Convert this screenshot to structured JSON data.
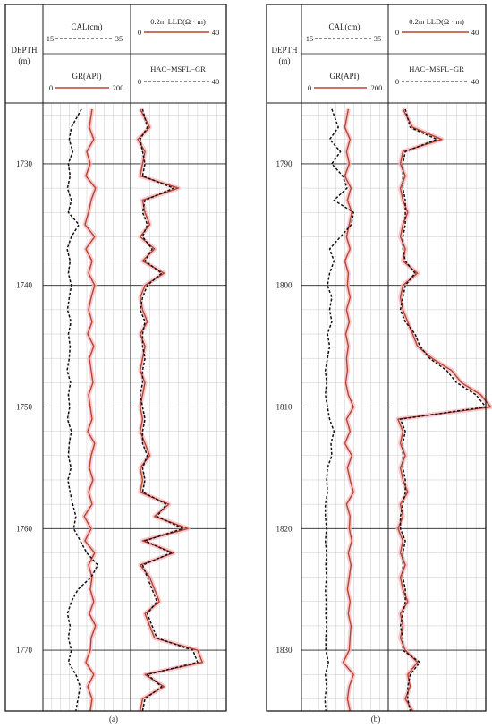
{
  "colors": {
    "gr_line": "#b5462a",
    "gr_halo": "#f4b9c6",
    "dashed": "#111111",
    "frame": "#1a1a1a",
    "minor_grid": "#c8c8c8",
    "major_grid": "#222222"
  },
  "chart_data": [
    {
      "type": "line",
      "panel": "(a)",
      "depth_header": [
        "DEPTH",
        "(m)"
      ],
      "depth_range": [
        1725,
        1775
      ],
      "depth_ticks": [
        1730,
        1740,
        1750,
        1760,
        1770
      ],
      "track1": {
        "curves": [
          {
            "name": "CAL(cm)",
            "min": 15,
            "max": 35,
            "style": "dashed"
          },
          {
            "name": "GR(API)",
            "min": 0,
            "max": 200,
            "style": "solid"
          }
        ]
      },
      "track2": {
        "curves": [
          {
            "name": "0.2m LLD(Ω · m)",
            "min": 0,
            "max": 40,
            "style": "solid"
          },
          {
            "name": "HAC−MSFL−GR",
            "min": 0,
            "max": 40,
            "style": "dashed"
          }
        ]
      },
      "series": [
        {
          "name": "GR(API)",
          "track": 1,
          "scale": [
            0,
            200
          ],
          "x": [
            1725.5,
            1727,
            1728,
            1729,
            1730,
            1731,
            1732,
            1733,
            1734,
            1735,
            1736,
            1737,
            1738,
            1739,
            1740,
            1741,
            1742,
            1743,
            1744,
            1745,
            1746,
            1747,
            1748,
            1749,
            1750,
            1751,
            1752,
            1753,
            1754,
            1755,
            1756,
            1757,
            1758,
            1759,
            1760,
            1761,
            1762,
            1763,
            1764,
            1765,
            1766,
            1767,
            1768,
            1769,
            1770,
            1771,
            1772,
            1773,
            1774,
            1775
          ],
          "values": [
            112,
            106,
            116,
            100,
            108,
            98,
            120,
            110,
            104,
            96,
            118,
            98,
            112,
            104,
            118,
            110,
            104,
            112,
            102,
            116,
            106,
            110,
            114,
            104,
            108,
            112,
            102,
            118,
            110,
            106,
            114,
            104,
            112,
            94,
            110,
            96,
            118,
            104,
            112,
            108,
            116,
            106,
            120,
            110,
            108,
            98,
            116,
            102,
            112,
            108
          ]
        },
        {
          "name": "CAL(cm)",
          "track": 1,
          "scale": [
            15,
            35
          ],
          "x": [
            1725.5,
            1727,
            1728,
            1729,
            1730,
            1731,
            1732,
            1733,
            1734,
            1735,
            1736,
            1737,
            1738,
            1739,
            1740,
            1741,
            1742,
            1743,
            1744,
            1745,
            1746,
            1747,
            1748,
            1749,
            1750,
            1751,
            1752,
            1753,
            1754,
            1755,
            1756,
            1757,
            1758,
            1759,
            1760,
            1761,
            1762,
            1763,
            1764,
            1765,
            1766,
            1767,
            1768,
            1769,
            1770,
            1771,
            1772,
            1773,
            1774,
            1775
          ],
          "values": [
            23.8,
            21.5,
            21.0,
            21.8,
            20.8,
            21.2,
            20.6,
            21.5,
            20.8,
            23.2,
            21.5,
            20.5,
            21.2,
            20.8,
            21.5,
            21.0,
            20.6,
            21.4,
            20.8,
            21.2,
            21.0,
            20.5,
            21.3,
            20.8,
            21.1,
            20.6,
            21.5,
            21.0,
            20.8,
            21.4,
            20.7,
            21.2,
            21.8,
            22.5,
            22.0,
            23.5,
            25.0,
            27.5,
            26.0,
            23.0,
            21.5,
            20.6,
            21.2,
            20.8,
            21.5,
            20.8,
            22.5,
            23.5,
            23.0,
            22.5
          ]
        },
        {
          "name": "0.2m LLD(Ω · m)",
          "track": 2,
          "scale": [
            0,
            40
          ],
          "x": [
            1725.5,
            1727,
            1728,
            1729,
            1730,
            1731,
            1732,
            1733,
            1734,
            1735,
            1736,
            1737,
            1738,
            1739,
            1740,
            1741,
            1742,
            1743,
            1744,
            1745,
            1746,
            1747,
            1748,
            1749,
            1750,
            1751,
            1752,
            1753,
            1754,
            1755,
            1756,
            1757,
            1758,
            1759,
            1760,
            1761,
            1762,
            1763,
            1764,
            1765,
            1766,
            1767,
            1768,
            1769,
            1770,
            1771,
            1772,
            1773,
            1774,
            1775
          ],
          "values": [
            4,
            8,
            3,
            6,
            5,
            4,
            20,
            5,
            6,
            8,
            4,
            10,
            5,
            14,
            6,
            4,
            5,
            7,
            4,
            6,
            5,
            4,
            6,
            5,
            4,
            5,
            4,
            6,
            8,
            4,
            5,
            4,
            16,
            10,
            24,
            5,
            18,
            4,
            8,
            10,
            12,
            6,
            8,
            10,
            28,
            30,
            6,
            14,
            5,
            4
          ]
        },
        {
          "name": "HAC−MSFL−GR",
          "track": 2,
          "scale": [
            0,
            40
          ],
          "x": [
            1725.5,
            1727,
            1728,
            1729,
            1730,
            1731,
            1732,
            1733,
            1734,
            1735,
            1736,
            1737,
            1738,
            1739,
            1740,
            1741,
            1742,
            1743,
            1744,
            1745,
            1746,
            1747,
            1748,
            1749,
            1750,
            1751,
            1752,
            1753,
            1754,
            1755,
            1756,
            1757,
            1758,
            1759,
            1760,
            1761,
            1762,
            1763,
            1764,
            1765,
            1766,
            1767,
            1768,
            1769,
            1770,
            1771,
            1772,
            1773,
            1774,
            1775
          ],
          "values": [
            5,
            7,
            4,
            5,
            6,
            5,
            18,
            6,
            5,
            7,
            5,
            9,
            6,
            13,
            7,
            5,
            4,
            6,
            5,
            5,
            6,
            5,
            5,
            4,
            5,
            6,
            5,
            5,
            7,
            5,
            6,
            5,
            15,
            11,
            22,
            6,
            17,
            5,
            7,
            9,
            11,
            7,
            9,
            11,
            26,
            28,
            7,
            13,
            6,
            5
          ]
        }
      ]
    },
    {
      "type": "line",
      "panel": "(b)",
      "depth_header": [
        "DEPTH",
        "(m)"
      ],
      "depth_range": [
        1785,
        1835
      ],
      "depth_ticks": [
        1790,
        1800,
        1810,
        1820,
        1830
      ],
      "track1": {
        "curves": [
          {
            "name": "CAL(cm)",
            "min": 15,
            "max": 35,
            "style": "dashed"
          },
          {
            "name": "GR(API)",
            "min": 0,
            "max": 200,
            "style": "solid"
          }
        ]
      },
      "track2": {
        "curves": [
          {
            "name": "0.2m LLD(Ω · m)",
            "min": 0,
            "max": 40,
            "style": "solid"
          },
          {
            "name": "HAC−MSFL−GR",
            "min": 0,
            "max": 40,
            "style": "dashed"
          }
        ]
      },
      "series": [
        {
          "name": "GR(API)",
          "track": 1,
          "scale": [
            0,
            200
          ],
          "x": [
            1785.5,
            1787,
            1788,
            1789,
            1790,
            1791,
            1792,
            1793,
            1794,
            1795,
            1796,
            1797,
            1798,
            1799,
            1800,
            1801,
            1802,
            1803,
            1804,
            1805,
            1806,
            1807,
            1808,
            1809,
            1810,
            1811,
            1812,
            1813,
            1814,
            1815,
            1816,
            1817,
            1818,
            1819,
            1820,
            1821,
            1822,
            1823,
            1824,
            1825,
            1826,
            1827,
            1828,
            1829,
            1830,
            1831,
            1832,
            1833,
            1834,
            1835
          ],
          "values": [
            108,
            100,
            112,
            104,
            110,
            100,
            114,
            106,
            116,
            110,
            104,
            112,
            100,
            108,
            106,
            112,
            104,
            110,
            102,
            108,
            104,
            106,
            102,
            108,
            120,
            104,
            112,
            100,
            116,
            106,
            112,
            120,
            104,
            112,
            110,
            116,
            108,
            114,
            110,
            106,
            112,
            108,
            114,
            112,
            110,
            96,
            120,
            110,
            106,
            112
          ]
        },
        {
          "name": "CAL(cm)",
          "track": 1,
          "scale": [
            15,
            35
          ],
          "x": [
            1785.5,
            1787,
            1788,
            1789,
            1790,
            1791,
            1792,
            1793,
            1794,
            1795,
            1796,
            1797,
            1798,
            1799,
            1800,
            1801,
            1802,
            1803,
            1804,
            1805,
            1806,
            1807,
            1808,
            1809,
            1810,
            1811,
            1812,
            1813,
            1814,
            1815,
            1816,
            1817,
            1818,
            1819,
            1820,
            1821,
            1822,
            1823,
            1824,
            1825,
            1826,
            1827,
            1828,
            1829,
            1830,
            1831,
            1832,
            1833,
            1834,
            1835
          ],
          "values": [
            22.0,
            23.5,
            21.5,
            24.0,
            22.0,
            24.5,
            25.5,
            22.5,
            27.0,
            26.5,
            24.0,
            21.5,
            22.5,
            21.5,
            21.0,
            22.0,
            21.5,
            22.0,
            21.0,
            21.5,
            21.0,
            20.5,
            20.8,
            20.5,
            21.0,
            21.5,
            22.5,
            21.8,
            22.0,
            21.0,
            20.8,
            21.0,
            20.5,
            20.5,
            20.8,
            20.5,
            20.8,
            20.6,
            20.8,
            20.5,
            20.7,
            20.6,
            20.8,
            20.6,
            20.6,
            21.2,
            20.5,
            20.8,
            20.4,
            20.6
          ]
        },
        {
          "name": "0.2m LLD(Ω · m)",
          "track": 2,
          "scale": [
            0,
            40
          ],
          "x": [
            1785.5,
            1787,
            1788,
            1789,
            1790,
            1791,
            1792,
            1793,
            1794,
            1795,
            1796,
            1797,
            1798,
            1799,
            1800,
            1801,
            1802,
            1803,
            1804,
            1805,
            1806,
            1807,
            1808,
            1809,
            1810,
            1811,
            1812,
            1813,
            1814,
            1815,
            1816,
            1817,
            1818,
            1819,
            1820,
            1821,
            1822,
            1823,
            1824,
            1825,
            1826,
            1827,
            1828,
            1829,
            1830,
            1831,
            1832,
            1833,
            1834,
            1835
          ],
          "values": [
            6,
            10,
            22,
            6,
            5,
            7,
            5,
            6,
            8,
            6,
            5,
            7,
            6,
            12,
            6,
            5,
            6,
            8,
            10,
            12,
            18,
            26,
            30,
            38,
            42,
            4,
            6,
            5,
            7,
            5,
            6,
            8,
            5,
            6,
            4,
            6,
            5,
            7,
            5,
            6,
            8,
            5,
            6,
            5,
            7,
            12,
            8,
            9,
            7,
            10
          ]
        },
        {
          "name": "HAC−MSFL−GR",
          "track": 2,
          "scale": [
            0,
            40
          ],
          "x": [
            1785.5,
            1787,
            1788,
            1789,
            1790,
            1791,
            1792,
            1793,
            1794,
            1795,
            1796,
            1797,
            1798,
            1799,
            1800,
            1801,
            1802,
            1803,
            1804,
            1805,
            1806,
            1807,
            1808,
            1809,
            1810,
            1811,
            1812,
            1813,
            1814,
            1815,
            1816,
            1817,
            1818,
            1819,
            1820,
            1821,
            1822,
            1823,
            1824,
            1825,
            1826,
            1827,
            1828,
            1829,
            1830,
            1831,
            1832,
            1833,
            1834,
            1835
          ],
          "values": [
            7,
            9,
            20,
            7,
            6,
            6,
            6,
            7,
            7,
            7,
            6,
            6,
            7,
            11,
            7,
            6,
            5,
            7,
            11,
            13,
            17,
            24,
            28,
            36,
            40,
            5,
            7,
            6,
            6,
            6,
            7,
            7,
            6,
            5,
            5,
            7,
            6,
            6,
            6,
            7,
            7,
            6,
            5,
            6,
            6,
            13,
            9,
            8,
            8,
            9
          ]
        }
      ]
    }
  ]
}
